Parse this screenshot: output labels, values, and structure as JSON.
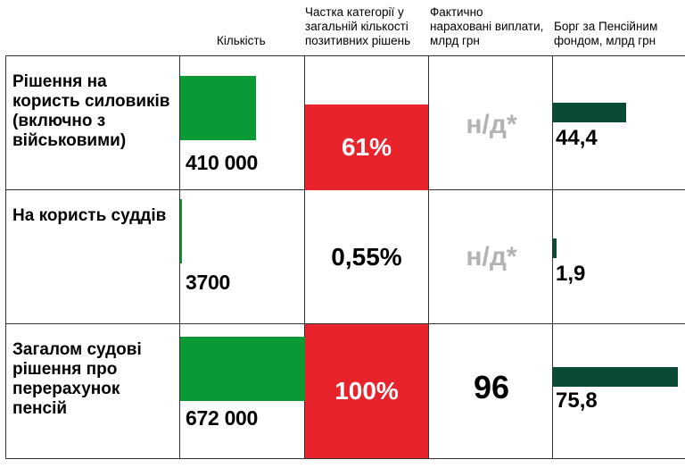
{
  "chart_data": {
    "type": "table",
    "columns": [
      "Кількість",
      "Частка категорії у загальній кількості позитивних рішень",
      "Фактично нараховані виплати, млрд грн",
      "Борг за Пенсійним фондом, млрд грн"
    ],
    "rows": [
      {
        "label": "Рішення на користь силовиків (включно з військовими)",
        "count": 410000,
        "count_label": "410 000",
        "share": 61,
        "share_label": "61%",
        "share_highlight": true,
        "payments_label": "н/д*",
        "payments_na": true,
        "debt": 44.4,
        "debt_label": "44,4"
      },
      {
        "label": "На користь суддів",
        "count": 3700,
        "count_label": "3700",
        "share": 0.55,
        "share_label": "0,55%",
        "share_highlight": false,
        "payments_label": "н/д*",
        "payments_na": true,
        "debt": 1.9,
        "debt_label": "1,9"
      },
      {
        "label": "Загалом судові рішення про перерахунок пенсій",
        "count": 672000,
        "count_label": "672 000",
        "share": 100,
        "share_label": "100%",
        "share_highlight": true,
        "payments_label": "96",
        "payments_na": false,
        "debt": 75.8,
        "debt_label": "75,8"
      }
    ],
    "count_max": 672000,
    "debt_max": 75.8
  },
  "colors": {
    "count_bar": "#0a9a35",
    "debt_bar": "#0b4a33",
    "highlight": "#e8232b",
    "na_text": "#b3b3b3"
  }
}
